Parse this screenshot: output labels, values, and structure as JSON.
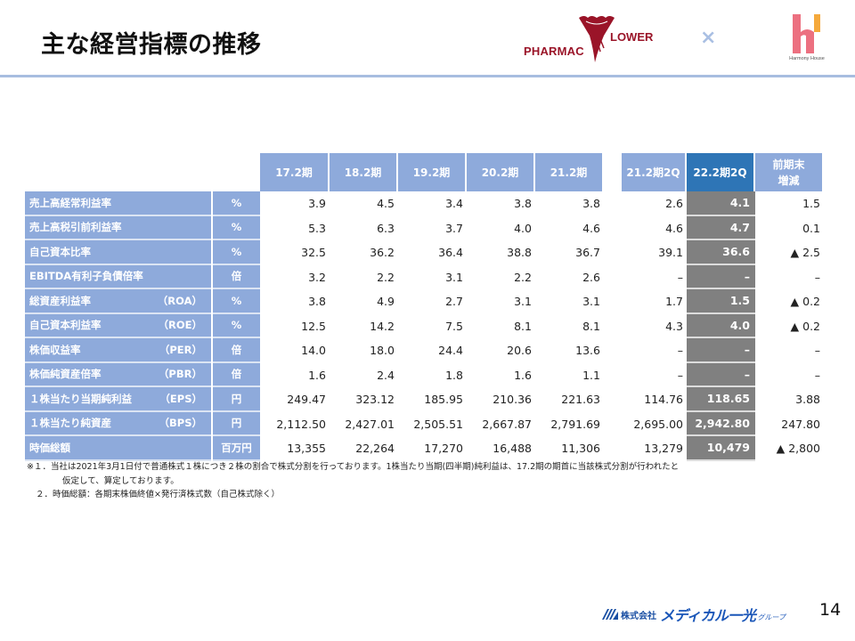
{
  "page": {
    "title": "主な経営指標の推移",
    "page_number": "14",
    "colors": {
      "header_rule": "#a7bde0",
      "table_header": "#8eaadb",
      "highlight_header": "#2e75b6",
      "highlight_cell": "#808080",
      "brand_red": "#9a1428",
      "footer_brand": "#1a56b8"
    }
  },
  "logos": {
    "pharmacy_left": "PHARMAC",
    "pharmacy_right": "LOWER",
    "times": "×",
    "harmony_caption": "Harmony House"
  },
  "table": {
    "headers": [
      "17.2期",
      "18.2期",
      "19.2期",
      "20.2期",
      "21.2期",
      "21.2期2Q",
      "22.2期2Q",
      "前期末\n増減"
    ],
    "header_delta_line1": "前期末",
    "header_delta_line2": "増減",
    "rows": [
      {
        "label": "売上高経常利益率",
        "sub": "",
        "unit": "%",
        "values": [
          "3.9",
          "4.5",
          "3.4",
          "3.8",
          "3.8",
          "2.6",
          "4.1",
          "1.5"
        ]
      },
      {
        "label": "売上高税引前利益率",
        "sub": "",
        "unit": "%",
        "values": [
          "5.3",
          "6.3",
          "3.7",
          "4.0",
          "4.6",
          "4.6",
          "4.7",
          "0.1"
        ]
      },
      {
        "label": "自己資本比率",
        "sub": "",
        "unit": "%",
        "values": [
          "32.5",
          "36.2",
          "36.4",
          "38.8",
          "36.7",
          "39.1",
          "36.6",
          "▲ 2.5"
        ]
      },
      {
        "label": "EBITDA有利子負債倍率",
        "sub": "",
        "unit": "倍",
        "values": [
          "3.2",
          "2.2",
          "3.1",
          "2.2",
          "2.6",
          "–",
          "–",
          "–"
        ]
      },
      {
        "label": "総資産利益率",
        "sub": "（ROA）",
        "unit": "%",
        "values": [
          "3.8",
          "4.9",
          "2.7",
          "3.1",
          "3.1",
          "1.7",
          "1.5",
          "▲ 0.2"
        ]
      },
      {
        "label": "自己資本利益率",
        "sub": "（ROE）",
        "unit": "%",
        "values": [
          "12.5",
          "14.2",
          "7.5",
          "8.1",
          "8.1",
          "4.3",
          "4.0",
          "▲ 0.2"
        ]
      },
      {
        "label": "株価収益率",
        "sub": "（PER）",
        "unit": "倍",
        "values": [
          "14.0",
          "18.0",
          "24.4",
          "20.6",
          "13.6",
          "–",
          "–",
          "–"
        ]
      },
      {
        "label": "株価純資産倍率",
        "sub": "（PBR）",
        "unit": "倍",
        "values": [
          "1.6",
          "2.4",
          "1.8",
          "1.6",
          "1.1",
          "–",
          "–",
          "–"
        ]
      },
      {
        "label": "１株当たり当期純利益",
        "sub": "（EPS）",
        "unit": "円",
        "values": [
          "249.47",
          "323.12",
          "185.95",
          "210.36",
          "221.63",
          "114.76",
          "118.65",
          "3.88"
        ]
      },
      {
        "label": "１株当たり純資産",
        "sub": "（BPS）",
        "unit": "円",
        "values": [
          "2,112.50",
          "2,427.01",
          "2,505.51",
          "2,667.87",
          "2,791.69",
          "2,695.00",
          "2,942.80",
          "247.80"
        ]
      },
      {
        "label": "時価総額",
        "sub": "",
        "unit": "百万円",
        "values": [
          "13,355",
          "22,264",
          "17,270",
          "16,488",
          "11,306",
          "13,279",
          "10,479",
          "▲ 2,800"
        ]
      }
    ]
  },
  "notes": {
    "line1": "※１．当社は2021年3月1日付で普通株式１株につき２株の割合で株式分割を行っております。1株当たり当期(四半期)純利益は、17.2期の期首に当該株式分割が行われたと",
    "line2": "仮定して、算定しております。",
    "line3": "２．時価総額：各期末株価終値×発行済株式数（自己株式除く）"
  },
  "footer": {
    "company_prefix": "株式会社",
    "brand": "メディカル一光",
    "group": "グループ"
  }
}
